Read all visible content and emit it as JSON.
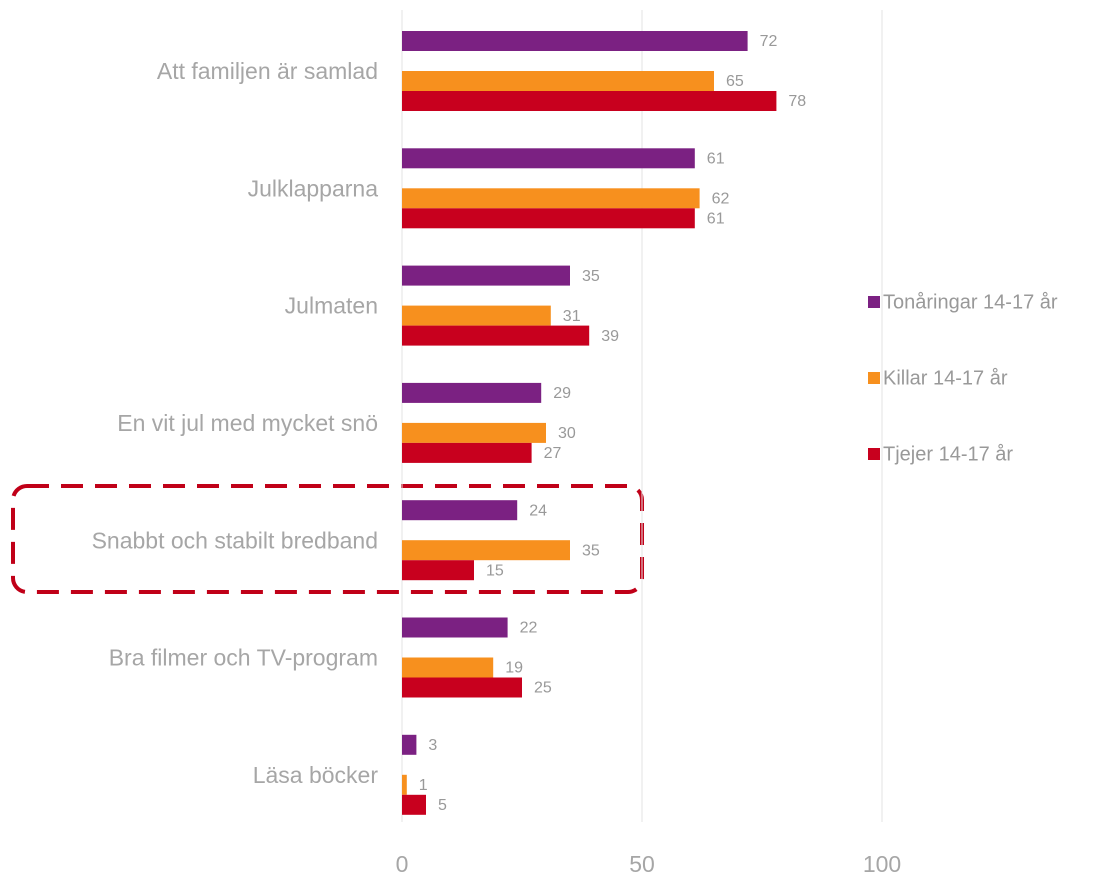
{
  "chart_data": {
    "type": "bar",
    "orientation": "horizontal",
    "categories": [
      "Att familjen är samlad",
      "Julklapparna",
      "Julmaten",
      "En vit jul med mycket snö",
      "Snabbt och stabilt bredband",
      "Bra filmer och TV-program",
      "Läsa böcker"
    ],
    "series": [
      {
        "name": "Tonåringar 14-17 år",
        "color": "#7b2182",
        "values": [
          72,
          61,
          35,
          29,
          24,
          22,
          3
        ]
      },
      {
        "name": "Killar 14-17 år",
        "color": "#f7901e",
        "values": [
          65,
          62,
          31,
          30,
          35,
          19,
          1
        ]
      },
      {
        "name": "Tjejer 14-17 år",
        "color": "#c8001e",
        "values": [
          78,
          61,
          39,
          27,
          15,
          25,
          5
        ]
      }
    ],
    "xlim": [
      0,
      100
    ],
    "xticks": [
      0,
      50,
      100
    ],
    "grid": true,
    "legend": "right"
  }
}
